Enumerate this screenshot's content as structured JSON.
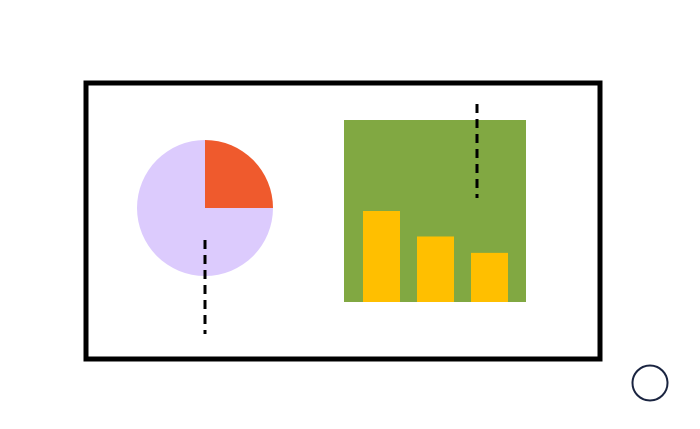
{
  "colors": {
    "background": "#ffffff",
    "frame": "#000000",
    "pie_base": "#dccbfd",
    "pie_slice": "#ef5a2d",
    "chart_background": "#81a842",
    "bars": "#ffbf00",
    "circle_outline": "#1a2440"
  },
  "icons": {
    "pie": "pie-chart-icon",
    "bars": "bar-chart-icon",
    "circle": "circle-icon"
  },
  "chart_data": [
    {
      "type": "pie",
      "values": [
        25,
        75
      ]
    },
    {
      "type": "bar",
      "values": [
        0.5,
        0.36,
        0.27
      ]
    }
  ]
}
